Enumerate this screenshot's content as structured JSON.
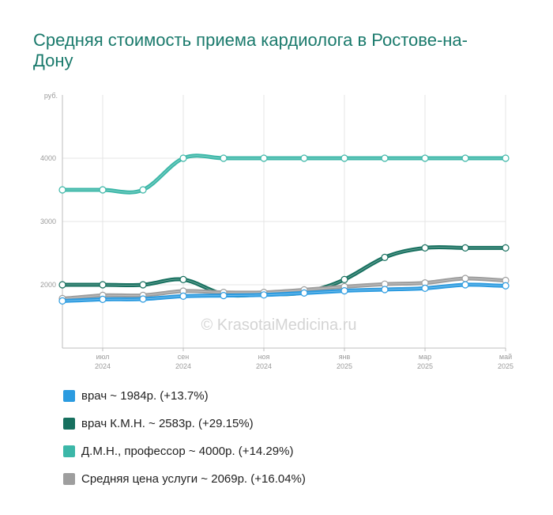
{
  "title": "Средняя стоимость приема кардиолога в Ростове-на-Дону",
  "watermark": "© KrasotaiMedicina.ru",
  "colors": {
    "vrach": "#2b9be0",
    "kmn": "#17705f",
    "dmn": "#3cb7a8",
    "avg": "#9e9e9e",
    "grid": "#e4e4e4",
    "axis": "#bdbdbd"
  },
  "legend": [
    {
      "label": "врач ~ 1984р. (+13.7%)",
      "color": "#2b9be0"
    },
    {
      "label": "врач К.М.Н. ~ 2583р. (+29.15%)",
      "color": "#17705f"
    },
    {
      "label": "Д.М.Н., профессор ~ 4000р. (+14.29%)",
      "color": "#3cb7a8"
    },
    {
      "label": "Средняя цена услуги ~ 2069р. (+16.04%)",
      "color": "#9e9e9e"
    }
  ],
  "chart_data": {
    "type": "line",
    "ylabel": "руб.",
    "ylim": [
      1000,
      5000
    ],
    "yticks": [
      2000,
      3000,
      4000
    ],
    "x_tick_labels": [
      {
        "month": "июл",
        "year": "2024",
        "index": 1
      },
      {
        "month": "сен",
        "year": "2024",
        "index": 3
      },
      {
        "month": "ноя",
        "year": "2024",
        "index": 5
      },
      {
        "month": "янв",
        "year": "2025",
        "index": 7
      },
      {
        "month": "мар",
        "year": "2025",
        "index": 9
      },
      {
        "month": "май",
        "year": "2025",
        "index": 11
      }
    ],
    "x": [
      "2024-06",
      "2024-07",
      "2024-08",
      "2024-09",
      "2024-10",
      "2024-11",
      "2024-12",
      "2025-01",
      "2025-02",
      "2025-03",
      "2025-04",
      "2025-05"
    ],
    "grid": true,
    "legend_position": "bottom",
    "series": [
      {
        "key": "dmn",
        "values": [
          3500,
          3500,
          3500,
          4000,
          4000,
          4000,
          4000,
          4000,
          4000,
          4000,
          4000,
          4000
        ]
      },
      {
        "key": "kmn",
        "values": [
          2000,
          2000,
          2000,
          2083,
          1850,
          1850,
          1880,
          2083,
          2433,
          2583,
          2583,
          2583
        ]
      },
      {
        "key": "avg",
        "values": [
          1783,
          1833,
          1833,
          1900,
          1880,
          1880,
          1920,
          1970,
          2010,
          2030,
          2100,
          2069
        ]
      },
      {
        "key": "vrach",
        "values": [
          1745,
          1770,
          1775,
          1820,
          1830,
          1840,
          1870,
          1905,
          1925,
          1945,
          2000,
          1984
        ]
      }
    ]
  }
}
